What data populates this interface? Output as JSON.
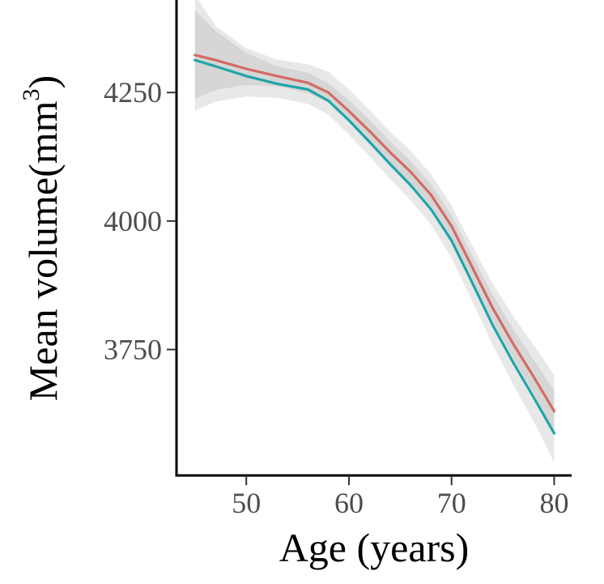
{
  "chart_data": {
    "type": "line",
    "title": "",
    "xlabel": "Age (years)",
    "ylabel_main": "Mean volume(mm",
    "ylabel_sup": "3",
    "ylabel_close": ")",
    "xlim": [
      43.2,
      81.7
    ],
    "ylim": [
      3505,
      4430
    ],
    "x_ticks": [
      50,
      60,
      70,
      80
    ],
    "y_ticks": [
      3750,
      4000,
      4250
    ],
    "grid": false,
    "legend": "none",
    "series": [
      {
        "color": "#D46A64",
        "x": [
          45,
          47,
          50,
          53,
          56,
          58,
          60,
          62,
          64,
          66,
          68,
          70,
          72,
          74,
          76,
          78,
          80
        ],
        "y": [
          4323,
          4313,
          4296,
          4282,
          4269,
          4250,
          4214,
          4175,
          4134,
          4096,
          4051,
          3990,
          3911,
          3831,
          3761,
          3697,
          3630
        ],
        "ci_inner": {
          "upper": [
            4410,
            4370,
            4327,
            4301,
            4289,
            4268,
            4235,
            4197,
            4156,
            4117,
            4072,
            4012,
            3934,
            3857,
            3790,
            3730,
            3670
          ],
          "lower": [
            4238,
            4255,
            4265,
            4262,
            4249,
            4230,
            4193,
            4152,
            4111,
            4074,
            4029,
            3967,
            3888,
            3806,
            3733,
            3665,
            3590
          ]
        }
      },
      {
        "color": "#1FA5A8",
        "x": [
          45,
          47,
          50,
          53,
          56,
          58,
          60,
          62,
          64,
          66,
          68,
          70,
          72,
          74,
          76,
          78,
          80
        ],
        "y": [
          4313,
          4301,
          4282,
          4267,
          4256,
          4234,
          4196,
          4154,
          4111,
          4070,
          4023,
          3962,
          3881,
          3798,
          3725,
          3657,
          3587
        ],
        "ci_outer": {
          "upper": [
            4440,
            4380,
            4336,
            4314,
            4305,
            4290,
            4256,
            4216,
            4174,
            4137,
            4091,
            4030,
            3953,
            3878,
            3815,
            3759,
            3700
          ],
          "lower": [
            4215,
            4232,
            4242,
            4240,
            4228,
            4207,
            4168,
            4126,
            4082,
            4041,
            3993,
            3928,
            3845,
            3759,
            3682,
            3610,
            3530
          ]
        }
      }
    ]
  }
}
